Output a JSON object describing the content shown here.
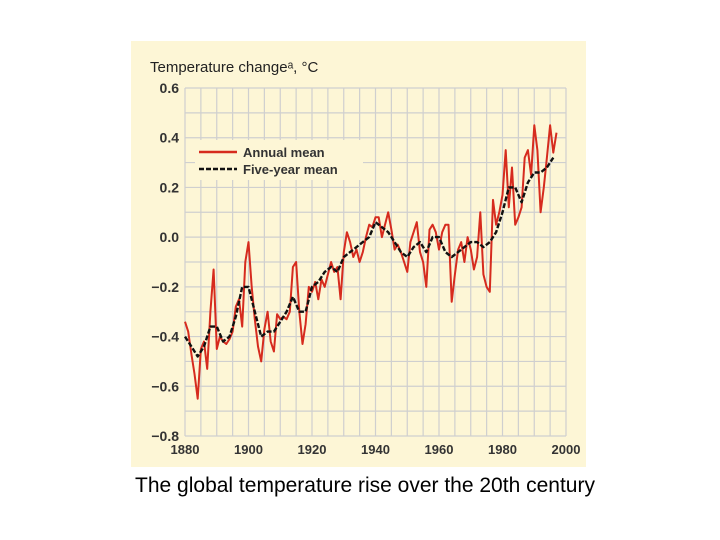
{
  "caption": "The global temperature rise over the 20th century",
  "chart_data": {
    "type": "line",
    "title": "Temperature changeᵃ, °C",
    "xlabel": "",
    "ylabel": "",
    "xlim": [
      1880,
      2000
    ],
    "ylim": [
      -0.8,
      0.6
    ],
    "xticks": [
      1880,
      1900,
      1920,
      1940,
      1960,
      1980,
      2000
    ],
    "yticks": [
      0.6,
      0.4,
      0.2,
      0.0,
      -0.2,
      -0.4,
      -0.6,
      -0.8
    ],
    "ytick_labels": [
      "0.6",
      "0.4",
      "0.2",
      "0.0",
      "−0.2",
      "−0.4",
      "−0.6",
      "−0.8"
    ],
    "grid": true,
    "legend_position": "top-left",
    "background_color": "#fdf6d6",
    "series": [
      {
        "name": "Annual mean",
        "style": "solid",
        "color": "#d62b1e",
        "x": [
          1880,
          1881,
          1882,
          1883,
          1884,
          1885,
          1886,
          1887,
          1888,
          1889,
          1890,
          1891,
          1892,
          1893,
          1894,
          1895,
          1896,
          1897,
          1898,
          1899,
          1900,
          1901,
          1902,
          1903,
          1904,
          1905,
          1906,
          1907,
          1908,
          1909,
          1910,
          1911,
          1912,
          1913,
          1914,
          1915,
          1916,
          1917,
          1918,
          1919,
          1920,
          1921,
          1922,
          1923,
          1924,
          1925,
          1926,
          1927,
          1928,
          1929,
          1930,
          1931,
          1932,
          1933,
          1934,
          1935,
          1936,
          1937,
          1938,
          1939,
          1940,
          1941,
          1942,
          1943,
          1944,
          1945,
          1946,
          1947,
          1948,
          1949,
          1950,
          1951,
          1952,
          1953,
          1954,
          1955,
          1956,
          1957,
          1958,
          1959,
          1960,
          1961,
          1962,
          1963,
          1964,
          1965,
          1966,
          1967,
          1968,
          1969,
          1970,
          1971,
          1972,
          1973,
          1974,
          1975,
          1976,
          1977,
          1978,
          1979,
          1980,
          1981,
          1982,
          1983,
          1984,
          1985,
          1986,
          1987,
          1988,
          1989,
          1990,
          1991,
          1992,
          1993,
          1994,
          1995,
          1996,
          1997
        ],
        "y": [
          -0.34,
          -0.38,
          -0.47,
          -0.55,
          -0.65,
          -0.45,
          -0.42,
          -0.53,
          -0.3,
          -0.13,
          -0.45,
          -0.4,
          -0.42,
          -0.43,
          -0.41,
          -0.38,
          -0.28,
          -0.25,
          -0.36,
          -0.1,
          -0.02,
          -0.2,
          -0.33,
          -0.44,
          -0.5,
          -0.37,
          -0.3,
          -0.42,
          -0.46,
          -0.31,
          -0.33,
          -0.32,
          -0.33,
          -0.3,
          -0.12,
          -0.1,
          -0.3,
          -0.43,
          -0.35,
          -0.2,
          -0.22,
          -0.18,
          -0.25,
          -0.17,
          -0.2,
          -0.15,
          -0.1,
          -0.14,
          -0.12,
          -0.25,
          -0.06,
          0.02,
          -0.02,
          -0.08,
          -0.05,
          -0.1,
          -0.06,
          0.0,
          0.05,
          0.04,
          0.08,
          0.08,
          0.0,
          0.05,
          0.1,
          0.03,
          -0.05,
          -0.03,
          -0.06,
          -0.1,
          -0.14,
          -0.02,
          0.02,
          0.06,
          -0.06,
          -0.1,
          -0.2,
          0.03,
          0.05,
          0.02,
          -0.05,
          0.02,
          0.05,
          0.05,
          -0.26,
          -0.15,
          -0.05,
          -0.02,
          -0.1,
          0.0,
          -0.05,
          -0.13,
          -0.08,
          0.1,
          -0.15,
          -0.2,
          -0.22,
          0.15,
          0.05,
          0.1,
          0.17,
          0.35,
          0.12,
          0.28,
          0.05,
          0.08,
          0.12,
          0.32,
          0.35,
          0.25,
          0.45,
          0.35,
          0.1,
          0.2,
          0.32,
          0.45,
          0.34,
          0.42
        ]
      },
      {
        "name": "Five-year mean",
        "style": "dashed",
        "color": "#111111",
        "x": [
          1880,
          1882,
          1884,
          1886,
          1888,
          1890,
          1892,
          1894,
          1896,
          1898,
          1900,
          1902,
          1904,
          1906,
          1908,
          1910,
          1912,
          1914,
          1916,
          1918,
          1920,
          1922,
          1924,
          1926,
          1928,
          1930,
          1932,
          1934,
          1936,
          1938,
          1940,
          1942,
          1944,
          1946,
          1948,
          1950,
          1952,
          1954,
          1956,
          1958,
          1960,
          1962,
          1964,
          1966,
          1968,
          1970,
          1972,
          1974,
          1976,
          1978,
          1980,
          1982,
          1984,
          1986,
          1988,
          1990,
          1992,
          1994,
          1996
        ],
        "y": [
          -0.4,
          -0.44,
          -0.48,
          -0.44,
          -0.36,
          -0.36,
          -0.42,
          -0.4,
          -0.32,
          -0.2,
          -0.2,
          -0.3,
          -0.4,
          -0.38,
          -0.38,
          -0.34,
          -0.3,
          -0.24,
          -0.3,
          -0.3,
          -0.2,
          -0.18,
          -0.14,
          -0.12,
          -0.14,
          -0.08,
          -0.06,
          -0.04,
          -0.02,
          0.0,
          0.06,
          0.04,
          0.02,
          -0.02,
          -0.06,
          -0.08,
          -0.04,
          -0.02,
          -0.06,
          0.0,
          0.0,
          -0.06,
          -0.08,
          -0.06,
          -0.04,
          -0.02,
          -0.02,
          -0.04,
          -0.02,
          0.02,
          0.1,
          0.2,
          0.2,
          0.14,
          0.22,
          0.26,
          0.26,
          0.28,
          0.32
        ]
      }
    ]
  }
}
